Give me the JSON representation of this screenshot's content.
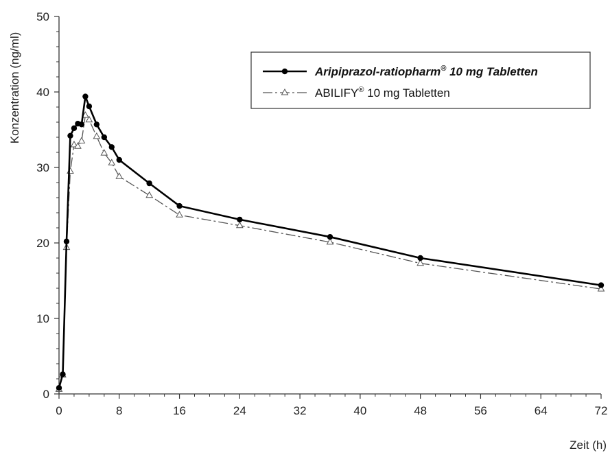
{
  "chart_data": {
    "type": "line",
    "title": "",
    "xlabel": "Zeit (h)",
    "ylabel": "Konzentration (ng/ml)",
    "xlim": [
      0,
      72
    ],
    "ylim": [
      0,
      50
    ],
    "x_ticks": [
      0,
      8,
      16,
      24,
      32,
      40,
      48,
      56,
      64,
      72
    ],
    "y_ticks": [
      0,
      10,
      20,
      30,
      40,
      50
    ],
    "grid": false,
    "legend_position": "top-right",
    "series": [
      {
        "name": "Aripiprazol-ratiopharm® 10 mg Tabletten",
        "name_main": "Aripiprazol-ratiopharm",
        "name_sup": "®",
        "name_rest": " 10 mg Tabletten",
        "style": "solid",
        "marker": "filled-circle",
        "color": "#000000",
        "x": [
          0,
          0.5,
          1,
          1.5,
          2,
          2.5,
          3,
          3.5,
          4,
          5,
          6,
          7,
          8,
          12,
          16,
          24,
          36,
          48,
          72
        ],
        "y": [
          0.8,
          2.6,
          20.2,
          34.2,
          35.2,
          35.8,
          35.7,
          39.4,
          38.1,
          35.7,
          34.0,
          32.7,
          31.0,
          27.9,
          24.9,
          23.1,
          20.8,
          18.0,
          14.4
        ]
      },
      {
        "name": "ABILIFY® 10 mg Tabletten",
        "name_main": "ABILIFY",
        "name_sup": "®",
        "name_rest": " 10 mg Tabletten",
        "style": "dash-dot",
        "marker": "open-triangle",
        "color": "#555555",
        "x": [
          0,
          0.5,
          1,
          1.5,
          2,
          2.5,
          3,
          3.5,
          4,
          5,
          6,
          7,
          8,
          12,
          16,
          24,
          36,
          48,
          72
        ],
        "y": [
          0.6,
          2.5,
          19.4,
          29.5,
          33.0,
          32.8,
          33.5,
          36.9,
          36.3,
          34.1,
          31.9,
          30.6,
          28.8,
          26.3,
          23.7,
          22.3,
          20.1,
          17.3,
          13.9
        ]
      }
    ]
  }
}
